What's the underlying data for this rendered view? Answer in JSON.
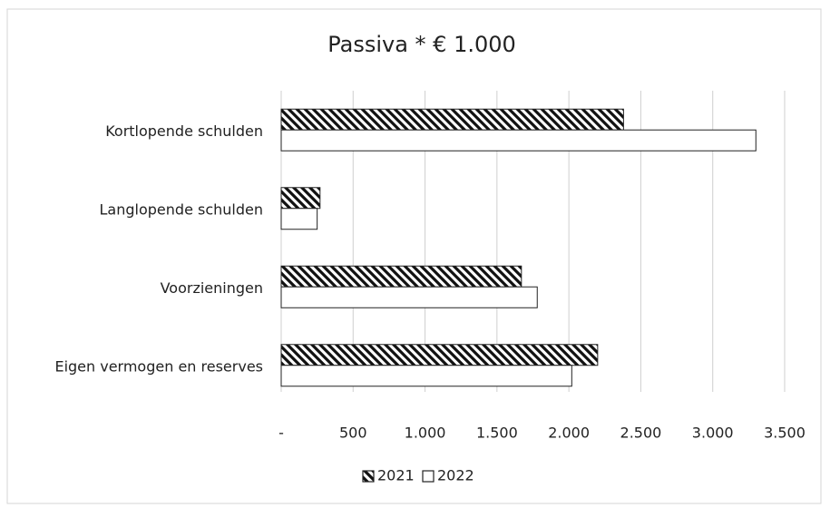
{
  "chart_data": {
    "type": "barh",
    "title": "Passiva * € 1.000",
    "categories": [
      "Kortlopende schulden",
      "Langlopende schulden",
      "Voorzieningen",
      "Eigen vermogen en reserves"
    ],
    "series": [
      {
        "name": "2021",
        "color": "#111111",
        "pattern": "hatch",
        "values": [
          2380,
          270,
          1670,
          2200
        ]
      },
      {
        "name": "2022",
        "color": "#ffffff",
        "pattern": "solid",
        "values": [
          3300,
          250,
          1780,
          2020
        ]
      }
    ],
    "xlim": [
      0,
      3500
    ],
    "xticks": [
      {
        "value": 0,
        "label": "-"
      },
      500,
      {
        "value": 1000,
        "label": "1.000"
      },
      {
        "value": 1500,
        "label": "1.500"
      },
      {
        "value": 2000,
        "label": "2.000"
      },
      {
        "value": 2500,
        "label": "2.500"
      },
      {
        "value": 3000,
        "label": "3.000"
      },
      {
        "value": 3500,
        "label": "3.500"
      }
    ],
    "grid": true,
    "legend": "bottom"
  }
}
